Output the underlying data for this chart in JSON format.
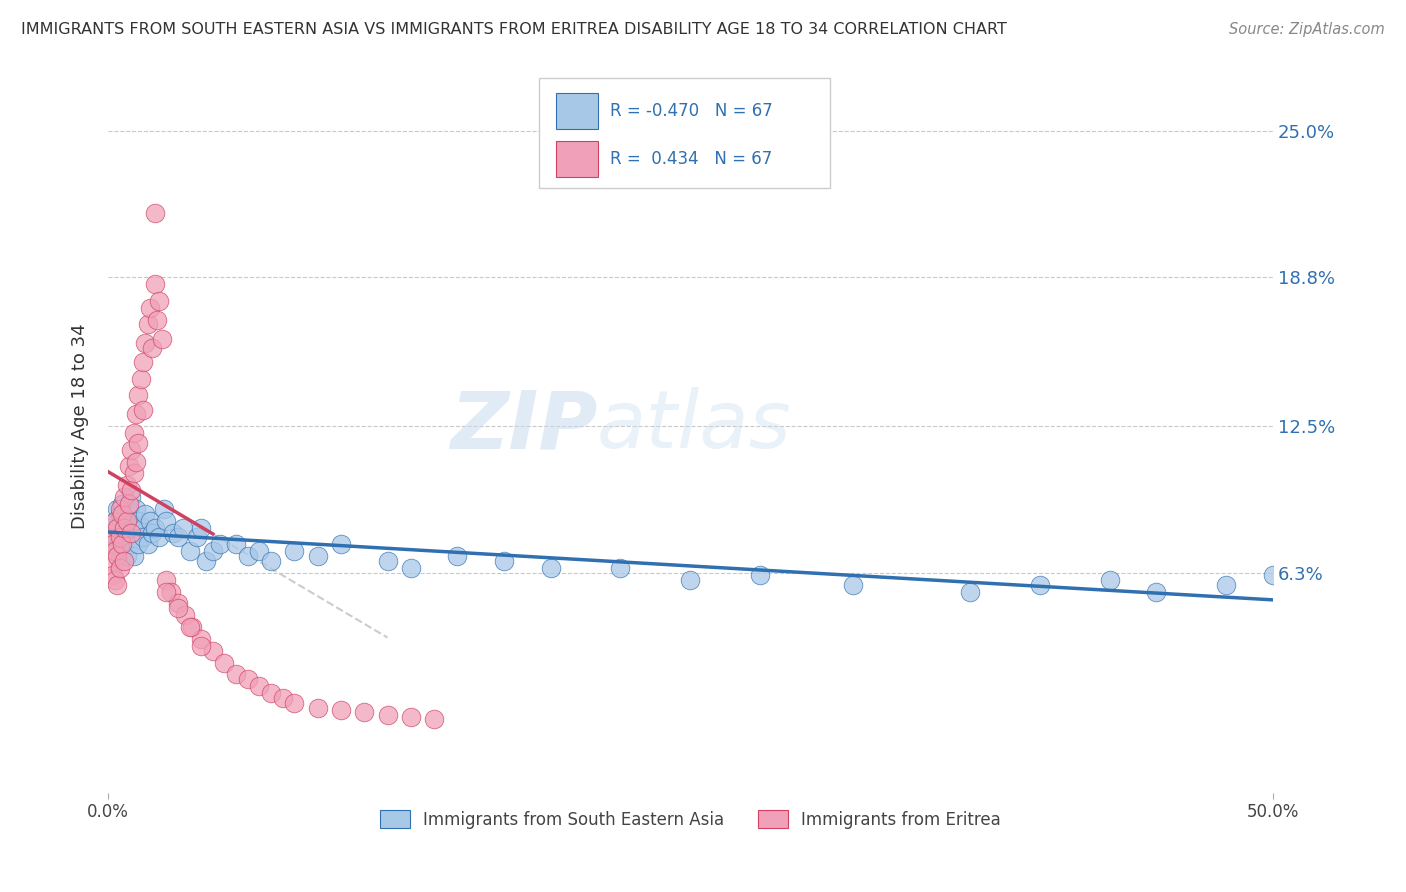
{
  "title": "IMMIGRANTS FROM SOUTH EASTERN ASIA VS IMMIGRANTS FROM ERITREA DISABILITY AGE 18 TO 34 CORRELATION CHART",
  "source": "Source: ZipAtlas.com",
  "ylabel": "Disability Age 18 to 34",
  "ytick_labels": [
    "6.3%",
    "12.5%",
    "18.8%",
    "25.0%"
  ],
  "ytick_values": [
    0.063,
    0.125,
    0.188,
    0.25
  ],
  "xlim": [
    0.0,
    0.5
  ],
  "ylim": [
    -0.03,
    0.28
  ],
  "watermark_zip": "ZIP",
  "watermark_atlas": "atlas",
  "color_blue": "#A8C8E8",
  "color_pink": "#F0A0B8",
  "color_blue_line": "#3070B0",
  "color_pink_line": "#D04060",
  "legend_label1": "Immigrants from South Eastern Asia",
  "legend_label2": "Immigrants from Eritrea",
  "blue_r": -0.47,
  "pink_r": 0.434,
  "n_points": 67,
  "blue_x": [
    0.001,
    0.002,
    0.003,
    0.003,
    0.004,
    0.004,
    0.005,
    0.005,
    0.005,
    0.006,
    0.006,
    0.007,
    0.007,
    0.008,
    0.008,
    0.009,
    0.009,
    0.01,
    0.01,
    0.01,
    0.011,
    0.011,
    0.012,
    0.012,
    0.013,
    0.013,
    0.015,
    0.015,
    0.016,
    0.017,
    0.018,
    0.019,
    0.02,
    0.022,
    0.024,
    0.025,
    0.028,
    0.03,
    0.032,
    0.035,
    0.038,
    0.04,
    0.042,
    0.045,
    0.048,
    0.055,
    0.06,
    0.065,
    0.07,
    0.08,
    0.09,
    0.1,
    0.12,
    0.13,
    0.15,
    0.17,
    0.19,
    0.22,
    0.25,
    0.28,
    0.32,
    0.37,
    0.4,
    0.43,
    0.45,
    0.48,
    0.5
  ],
  "blue_y": [
    0.082,
    0.078,
    0.085,
    0.074,
    0.09,
    0.072,
    0.08,
    0.088,
    0.068,
    0.078,
    0.092,
    0.082,
    0.075,
    0.085,
    0.07,
    0.08,
    0.09,
    0.085,
    0.075,
    0.095,
    0.082,
    0.07,
    0.08,
    0.09,
    0.085,
    0.075,
    0.082,
    0.078,
    0.088,
    0.075,
    0.085,
    0.08,
    0.082,
    0.078,
    0.09,
    0.085,
    0.08,
    0.078,
    0.082,
    0.072,
    0.078,
    0.082,
    0.068,
    0.072,
    0.075,
    0.075,
    0.07,
    0.072,
    0.068,
    0.072,
    0.07,
    0.075,
    0.068,
    0.065,
    0.07,
    0.068,
    0.065,
    0.065,
    0.06,
    0.062,
    0.058,
    0.055,
    0.058,
    0.06,
    0.055,
    0.058,
    0.062
  ],
  "pink_x": [
    0.001,
    0.001,
    0.002,
    0.002,
    0.003,
    0.003,
    0.003,
    0.004,
    0.004,
    0.004,
    0.005,
    0.005,
    0.005,
    0.006,
    0.006,
    0.007,
    0.007,
    0.007,
    0.008,
    0.008,
    0.009,
    0.009,
    0.01,
    0.01,
    0.01,
    0.011,
    0.011,
    0.012,
    0.012,
    0.013,
    0.013,
    0.014,
    0.015,
    0.015,
    0.016,
    0.017,
    0.018,
    0.019,
    0.02,
    0.021,
    0.022,
    0.023,
    0.025,
    0.027,
    0.03,
    0.033,
    0.036,
    0.04,
    0.045,
    0.05,
    0.055,
    0.06,
    0.065,
    0.07,
    0.075,
    0.08,
    0.09,
    0.1,
    0.11,
    0.12,
    0.13,
    0.14,
    0.02,
    0.025,
    0.03,
    0.035,
    0.04
  ],
  "pink_y": [
    0.08,
    0.068,
    0.075,
    0.062,
    0.085,
    0.072,
    0.06,
    0.082,
    0.07,
    0.058,
    0.09,
    0.078,
    0.065,
    0.088,
    0.075,
    0.095,
    0.082,
    0.068,
    0.1,
    0.085,
    0.108,
    0.092,
    0.115,
    0.098,
    0.08,
    0.122,
    0.105,
    0.13,
    0.11,
    0.138,
    0.118,
    0.145,
    0.152,
    0.132,
    0.16,
    0.168,
    0.175,
    0.158,
    0.185,
    0.17,
    0.178,
    0.162,
    0.06,
    0.055,
    0.05,
    0.045,
    0.04,
    0.035,
    0.03,
    0.025,
    0.02,
    0.018,
    0.015,
    0.012,
    0.01,
    0.008,
    0.006,
    0.005,
    0.004,
    0.003,
    0.002,
    0.001,
    0.215,
    0.055,
    0.048,
    0.04,
    0.032
  ]
}
